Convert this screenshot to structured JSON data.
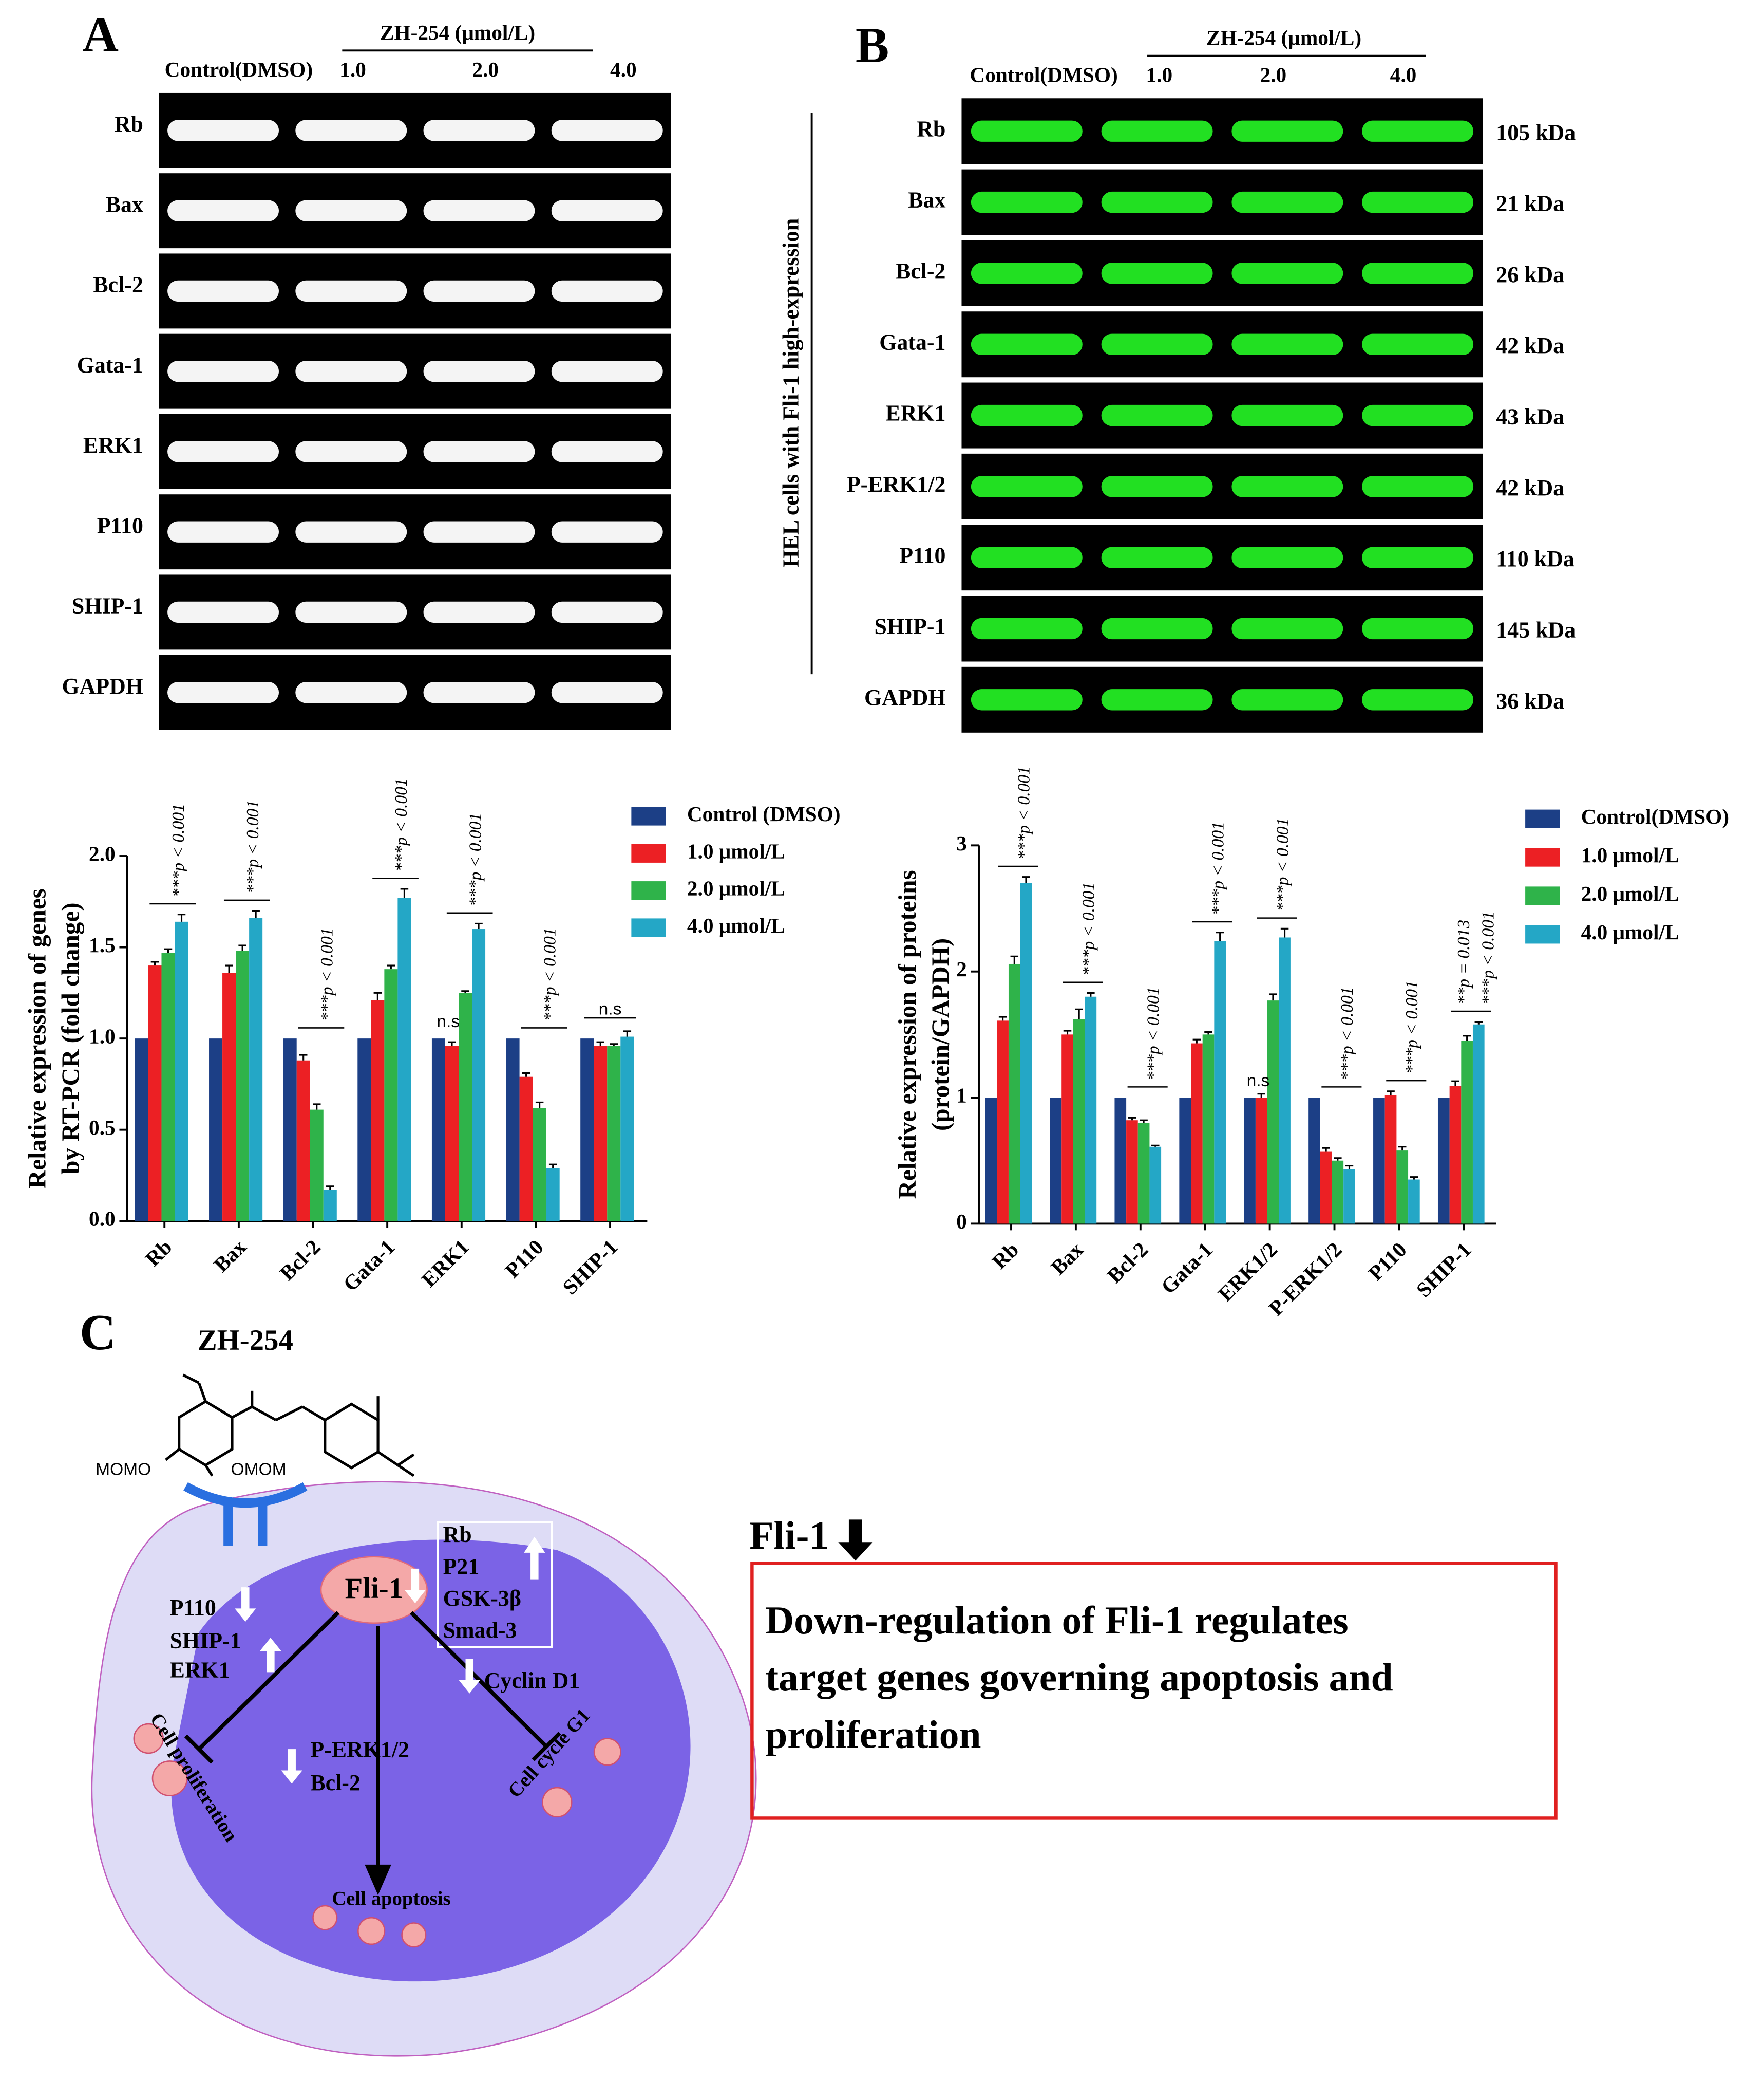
{
  "panels": {
    "a": "A",
    "b": "B",
    "c": "C"
  },
  "gel_a": {
    "treatment": "ZH-254 (μmol/L)",
    "lanes": [
      "Control(DMSO)",
      "1.0",
      "2.0",
      "4.0"
    ],
    "genes": [
      "Rb",
      "Bax",
      "Bcl-2",
      "Gata-1",
      "ERK1",
      "P110",
      "SHIP-1",
      "GAPDH"
    ]
  },
  "gel_b": {
    "treatment": "ZH-254 (μmol/L)",
    "lanes": [
      "Control(DMSO)",
      "1.0",
      "2.0",
      "4.0"
    ],
    "side_label": "HEL cells with Fli-1 high-expression",
    "proteins": [
      "Rb",
      "Bax",
      "Bcl-2",
      "Gata-1",
      "ERK1",
      "P-ERK1/2",
      "P110",
      "SHIP-1",
      "GAPDH"
    ],
    "sizes": [
      "105 kDa",
      "21 kDa",
      "26 kDa",
      "42 kDa",
      "43 kDa",
      "42 kDa",
      "110 kDa",
      "145 kDa",
      "36 kDa"
    ]
  },
  "chart_data": [
    {
      "type": "bar",
      "ylabel": [
        "Relative expression of genes",
        "by RT-PCR (fold change)"
      ],
      "categories": [
        "Rb",
        "Bax",
        "Bcl-2",
        "Gata-1",
        "ERK1",
        "P110",
        "SHIP-1"
      ],
      "series": [
        {
          "name": "Control (DMSO)",
          "color": "#1c3f86",
          "values": [
            1,
            1,
            1,
            1,
            1,
            1,
            1
          ]
        },
        {
          "name": "1.0 μmol/L",
          "color": "#ec2024",
          "values": [
            1.4,
            1.36,
            0.88,
            1.21,
            0.96,
            0.79,
            0.96
          ],
          "errors": [
            0.02,
            0.04,
            0.03,
            0.04,
            0.02,
            0.02,
            0.02
          ]
        },
        {
          "name": "2.0 μmol/L",
          "color": "#2fb34a",
          "values": [
            1.47,
            1.48,
            0.61,
            1.38,
            1.25,
            0.62,
            0.96
          ],
          "errors": [
            0.02,
            0.03,
            0.03,
            0.02,
            0.01,
            0.03,
            0.01
          ]
        },
        {
          "name": "4.0 μmol/L",
          "color": "#24a7c6",
          "values": [
            1.64,
            1.66,
            0.17,
            1.77,
            1.6,
            0.29,
            1.01
          ],
          "errors": [
            0.04,
            0.04,
            0.02,
            0.05,
            0.03,
            0.02,
            0.03
          ]
        }
      ],
      "significance": [
        [
          "***p < 0.001"
        ],
        [
          "***p < 0.001"
        ],
        [
          "***p < 0.001"
        ],
        [
          "***p < 0.001"
        ],
        [
          "n.s",
          "***p < 0.001"
        ],
        [
          "***p < 0.001"
        ],
        [
          "n.s"
        ]
      ],
      "ylim": [
        0,
        2.0
      ],
      "yticks": [
        {
          "value": 0,
          "label": "0.0"
        },
        0.5,
        {
          "value": 1,
          "label": "1.0"
        },
        1.5,
        {
          "value": 2,
          "label": "2.0"
        }
      ],
      "legend": "upper right"
    },
    {
      "type": "bar",
      "ylabel": [
        "Relative expression of proteins",
        "(protein/GAPDH)"
      ],
      "categories": [
        "Rb",
        "Bax",
        "Bcl-2",
        "Gata-1",
        "ERK1/2",
        "P-ERK1/2",
        "P110",
        "SHIP-1"
      ],
      "series": [
        {
          "name": "Control(DMSO)",
          "color": "#1c3f86",
          "values": [
            1,
            1,
            1,
            1,
            1,
            1,
            1,
            1
          ]
        },
        {
          "name": "1.0 μmol/L",
          "color": "#ec2024",
          "values": [
            1.61,
            1.5,
            0.82,
            1.43,
            1.0,
            0.57,
            1.02,
            1.09
          ],
          "errors": [
            0.03,
            0.03,
            0.02,
            0.03,
            0.03,
            0.03,
            0.03,
            0.04
          ]
        },
        {
          "name": "2.0 μmol/L",
          "color": "#2fb34a",
          "values": [
            2.06,
            1.62,
            0.8,
            1.5,
            1.77,
            0.5,
            0.58,
            1.45
          ],
          "errors": [
            0.06,
            0.08,
            0.02,
            0.02,
            0.05,
            0.02,
            0.03,
            0.04
          ]
        },
        {
          "name": "4.0 μmol/L",
          "color": "#24a7c6",
          "values": [
            2.7,
            1.8,
            0.61,
            2.24,
            2.27,
            0.43,
            0.35,
            1.58
          ],
          "errors": [
            0.05,
            0.03,
            0.01,
            0.07,
            0.07,
            0.03,
            0.02,
            0.02
          ]
        }
      ],
      "significance": [
        [
          "***p < 0.001"
        ],
        [
          "***p < 0.001"
        ],
        [
          "***p < 0.001"
        ],
        [
          "***p < 0.001"
        ],
        [
          "n.s",
          "***p < 0.001"
        ],
        [
          "***p < 0.001"
        ],
        [
          "***p < 0.001"
        ],
        [
          "**p = 0.013",
          "***p < 0.001"
        ]
      ],
      "ylim": [
        0,
        3
      ],
      "yticks": [
        0,
        1,
        2,
        3
      ],
      "legend": "upper right"
    }
  ],
  "diagram": {
    "drug": "ZH-254",
    "substituents": [
      "MOMO",
      "OMOM"
    ],
    "center": "Fli-1",
    "left_targets": [
      "P110",
      "SHIP-1",
      "ERK1"
    ],
    "boxed_targets": [
      "Rb",
      "P21",
      "GSK-3β",
      "Smad-3"
    ],
    "cyclin": "Cyclin D1",
    "lower_targets": [
      "P-ERK1/2",
      "Bcl-2"
    ],
    "outcomes": [
      "Cell proliferation",
      "Cell cycle G1",
      "Cell apoptosis"
    ]
  },
  "summary": {
    "heading": "Fli-1",
    "lines": [
      "Down-regulation of Fli-1 regulates",
      "target genes governing apoptosis and",
      "proliferation"
    ]
  }
}
